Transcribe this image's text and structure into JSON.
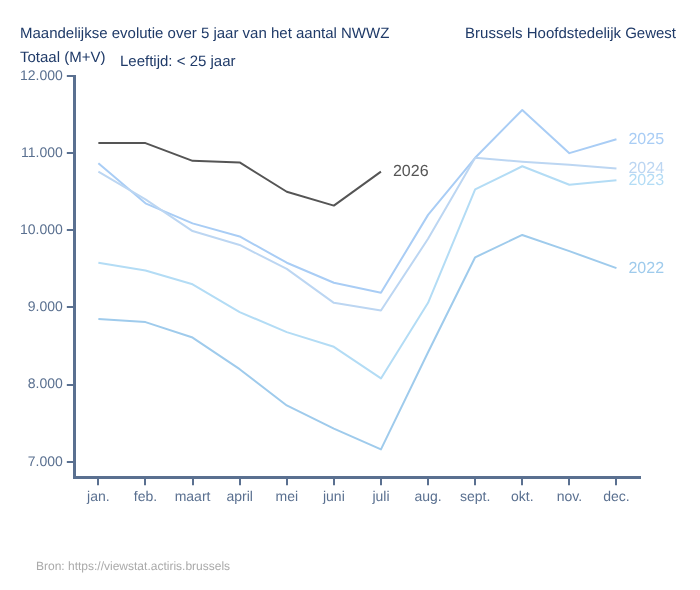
{
  "chart_data": {
    "type": "line",
    "title": "Maandelijkse evolutie over 5 jaar van het aantal NWWZ",
    "subtitle": "Totaal (M+V)",
    "annotations": [
      "Brussels Hoofdstedelijk Gewest",
      "Leeftijd: < 25 jaar",
      "Bron: https://viewstat.actiris.brussels"
    ],
    "categories": [
      "jan.",
      "feb.",
      "maart",
      "april",
      "mei",
      "juni",
      "juli",
      "aug.",
      "sept.",
      "okt.",
      "nov.",
      "dec."
    ],
    "series": [
      {
        "name": "2022",
        "color": "#9fcbec",
        "values": [
          8850,
          8810,
          8610,
          8200,
          7730,
          7430,
          7160,
          8420,
          9650,
          9940,
          9730,
          9510
        ]
      },
      {
        "name": "2023",
        "color": "#b3dcf5",
        "values": [
          9580,
          9480,
          9300,
          8940,
          8680,
          8490,
          8080,
          9060,
          10530,
          10830,
          10590,
          10650
        ]
      },
      {
        "name": "2024",
        "color": "#bcd6f2",
        "values": [
          10760,
          10400,
          9990,
          9810,
          9500,
          9060,
          8960,
          9890,
          10940,
          10890,
          10850,
          10800
        ]
      },
      {
        "name": "2025",
        "color": "#a9cdf5",
        "values": [
          10870,
          10350,
          10090,
          9920,
          9580,
          9320,
          9190,
          10200,
          10940,
          11560,
          11000,
          11180
        ]
      },
      {
        "name": "2026",
        "color": "#555555",
        "values": [
          11130,
          11130,
          10900,
          10880,
          10500,
          10320,
          10760,
          null,
          null,
          null,
          null,
          null
        ]
      }
    ],
    "ylim": [
      6800,
      12000
    ],
    "yticks": [
      {
        "value": 7000,
        "label": "7.000"
      },
      {
        "value": 8000,
        "label": "8.000"
      },
      {
        "value": 9000,
        "label": "9.000"
      },
      {
        "value": 10000,
        "label": "10.000"
      },
      {
        "value": 11000,
        "label": "11.000"
      },
      {
        "value": 12000,
        "label": "12.000"
      }
    ],
    "grid": false,
    "legend": false,
    "marker": "none",
    "line_style": "solid"
  }
}
